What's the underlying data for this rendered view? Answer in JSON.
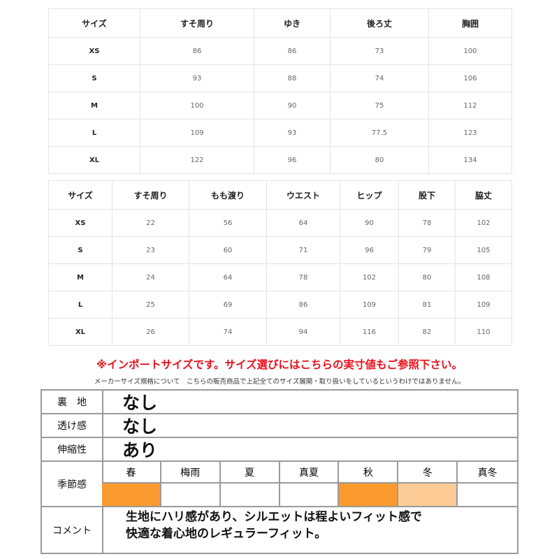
{
  "tops": {
    "headers": [
      "サイズ",
      "すそ周り",
      "ゆき",
      "後ろ丈",
      "胸囲"
    ],
    "rows": [
      [
        "XS",
        "86",
        "86",
        "73",
        "100"
      ],
      [
        "S",
        "93",
        "88",
        "74",
        "106"
      ],
      [
        "M",
        "100",
        "90",
        "75",
        "112"
      ],
      [
        "L",
        "109",
        "93",
        "77.5",
        "123"
      ],
      [
        "XL",
        "122",
        "96",
        "80",
        "134"
      ]
    ]
  },
  "bottoms": {
    "headers": [
      "サイズ",
      "すそ周り",
      "もも渡り",
      "ウエスト",
      "ヒップ",
      "股下",
      "脇丈"
    ],
    "rows": [
      [
        "XS",
        "22",
        "56",
        "64",
        "90",
        "78",
        "102"
      ],
      [
        "S",
        "23",
        "60",
        "71",
        "96",
        "79",
        "105"
      ],
      [
        "M",
        "24",
        "64",
        "78",
        "102",
        "80",
        "108"
      ],
      [
        "L",
        "25",
        "69",
        "86",
        "109",
        "81",
        "109"
      ],
      [
        "XL",
        "26",
        "74",
        "94",
        "116",
        "82",
        "110"
      ]
    ]
  },
  "notice": "※インポートサイズです。サイズ選びにはこちらの実寸値もご参照下さい。",
  "disclaimer": "メーカーサイズ規格について　こちらの販売商品で上記全てのサイズ展開・取り扱いをしているというわけではありません。",
  "spec": {
    "lining": {
      "label": "裏　地",
      "value": "なし"
    },
    "sheer": {
      "label": "透け感",
      "value": "なし"
    },
    "stretch": {
      "label": "伸縮性",
      "value": "あり"
    },
    "season": {
      "label": "季節感",
      "items": [
        {
          "name": "春",
          "level": "full"
        },
        {
          "name": "梅雨",
          "level": "none"
        },
        {
          "name": "夏",
          "level": "none"
        },
        {
          "name": "真夏",
          "level": "none"
        },
        {
          "name": "秋",
          "level": "full"
        },
        {
          "name": "冬",
          "level": "partial"
        },
        {
          "name": "真冬",
          "level": "none"
        }
      ],
      "colors": {
        "full": "#fb9a2e",
        "partial": "#fdcb96",
        "none": "#ffffff"
      }
    },
    "comment": {
      "label": "コメント",
      "lines": [
        "生地にハリ感があり、シルエットは程よいフィット感で",
        "快適な着心地のレギュラーフィット。"
      ]
    }
  }
}
